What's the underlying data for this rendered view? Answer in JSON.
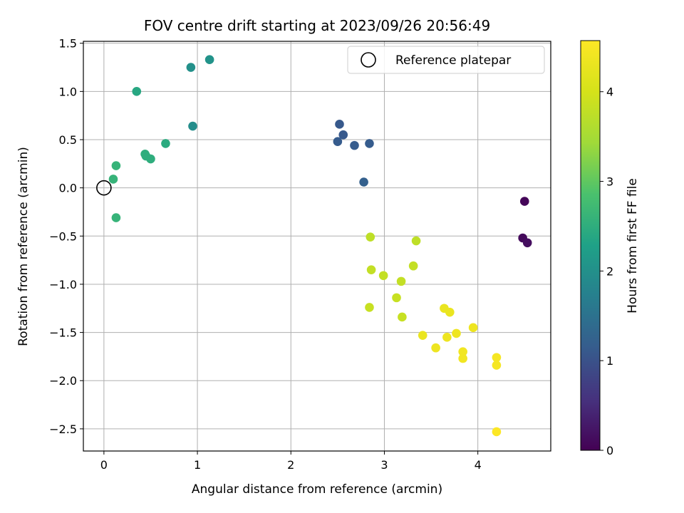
{
  "chart_data": {
    "type": "scatter",
    "title": "FOV centre drift starting at 2023/09/26 20:56:49",
    "xlabel": "Angular distance from reference (arcmin)",
    "ylabel": "Rotation from reference (arcmin)",
    "xlim": [
      -0.22,
      4.78
    ],
    "ylim": [
      -2.73,
      1.52
    ],
    "xticks": [
      0,
      1,
      2,
      3,
      4
    ],
    "xtick_labels": [
      "0",
      "1",
      "2",
      "3",
      "4"
    ],
    "yticks": [
      1.5,
      1.0,
      0.5,
      0.0,
      -0.5,
      -1.0,
      -1.5,
      -2.0,
      -2.5
    ],
    "ytick_labels": [
      "1.5",
      "1.0",
      "0.5",
      "0.0",
      "−0.5",
      "−1.0",
      "−1.5",
      "−2.0",
      "−2.5"
    ],
    "grid": true,
    "legend": {
      "position": "top-right",
      "entries": [
        "Reference platepar"
      ]
    },
    "reference_point": {
      "x": 0,
      "y": 0
    },
    "colorbar": {
      "label": "Hours from first FF file",
      "range": [
        0,
        4.57
      ],
      "ticks": [
        0,
        1,
        2,
        3,
        4
      ],
      "tick_labels": [
        "0",
        "1",
        "2",
        "3",
        "4"
      ],
      "colormap": "viridis"
    },
    "points": [
      {
        "x": 4.5,
        "y": -0.14,
        "c": 0.05
      },
      {
        "x": 4.48,
        "y": -0.52,
        "c": 0.1
      },
      {
        "x": 4.53,
        "y": -0.57,
        "c": 0.15
      },
      {
        "x": 2.52,
        "y": 0.66,
        "c": 1.1
      },
      {
        "x": 2.56,
        "y": 0.55,
        "c": 1.1
      },
      {
        "x": 2.5,
        "y": 0.48,
        "c": 1.15
      },
      {
        "x": 2.68,
        "y": 0.44,
        "c": 1.15
      },
      {
        "x": 2.84,
        "y": 0.46,
        "c": 1.15
      },
      {
        "x": 2.78,
        "y": 0.06,
        "c": 1.2
      },
      {
        "x": 1.13,
        "y": 1.33,
        "c": 2.05
      },
      {
        "x": 0.93,
        "y": 1.25,
        "c": 2.0
      },
      {
        "x": 0.95,
        "y": 0.64,
        "c": 1.95
      },
      {
        "x": 0.35,
        "y": 1.0,
        "c": 2.4
      },
      {
        "x": 0.66,
        "y": 0.46,
        "c": 2.45
      },
      {
        "x": 0.44,
        "y": 0.35,
        "c": 2.5
      },
      {
        "x": 0.45,
        "y": 0.33,
        "c": 2.5
      },
      {
        "x": 0.5,
        "y": 0.3,
        "c": 2.5
      },
      {
        "x": 0.13,
        "y": 0.23,
        "c": 2.6
      },
      {
        "x": 0.1,
        "y": 0.09,
        "c": 2.6
      },
      {
        "x": 0.13,
        "y": -0.31,
        "c": 2.6
      },
      {
        "x": 2.85,
        "y": -0.51,
        "c": 3.75
      },
      {
        "x": 3.34,
        "y": -0.55,
        "c": 3.75
      },
      {
        "x": 2.86,
        "y": -0.85,
        "c": 3.8
      },
      {
        "x": 3.31,
        "y": -0.81,
        "c": 3.8
      },
      {
        "x": 2.99,
        "y": -0.91,
        "c": 3.8
      },
      {
        "x": 3.18,
        "y": -0.97,
        "c": 3.8
      },
      {
        "x": 3.13,
        "y": -1.14,
        "c": 3.85
      },
      {
        "x": 2.84,
        "y": -1.24,
        "c": 3.85
      },
      {
        "x": 3.19,
        "y": -1.34,
        "c": 3.85
      },
      {
        "x": 3.64,
        "y": -1.25,
        "c": 4.3
      },
      {
        "x": 3.7,
        "y": -1.29,
        "c": 4.3
      },
      {
        "x": 3.41,
        "y": -1.53,
        "c": 4.3
      },
      {
        "x": 3.67,
        "y": -1.55,
        "c": 4.35
      },
      {
        "x": 3.77,
        "y": -1.51,
        "c": 4.35
      },
      {
        "x": 3.95,
        "y": -1.45,
        "c": 4.35
      },
      {
        "x": 3.55,
        "y": -1.66,
        "c": 4.35
      },
      {
        "x": 3.84,
        "y": -1.7,
        "c": 4.4
      },
      {
        "x": 3.84,
        "y": -1.77,
        "c": 4.4
      },
      {
        "x": 4.2,
        "y": -1.76,
        "c": 4.45
      },
      {
        "x": 4.2,
        "y": -1.84,
        "c": 4.45
      },
      {
        "x": 4.2,
        "y": -2.53,
        "c": 4.55
      }
    ]
  }
}
